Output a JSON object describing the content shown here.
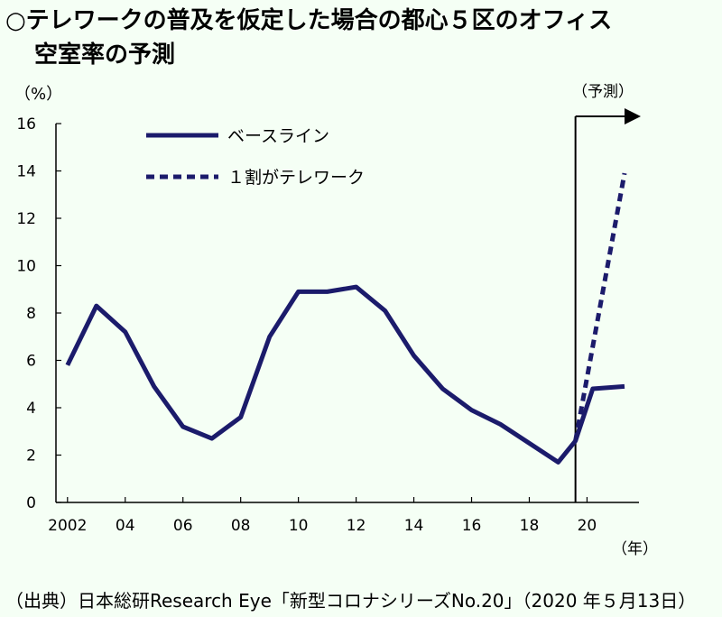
{
  "title": {
    "line1": "○テレワークの普及を仮定した場合の都心５区のオフィス",
    "line2": "空室率の予測"
  },
  "source": "（出典）日本総研Research Eye「新型コロナシリーズNo.20」（2020 年５月13日）",
  "chart_data": {
    "type": "line",
    "ylabel": "（%）",
    "xlabel": "（年）",
    "forecast_label": "（予測）",
    "ylim": [
      0,
      16
    ],
    "yticks": [
      "0",
      "2",
      "4",
      "6",
      "8",
      "10",
      "12",
      "14",
      "16"
    ],
    "xlim": [
      2001.6,
      2021.8
    ],
    "xticks": [
      {
        "x": 2002,
        "label": "2002"
      },
      {
        "x": 2004,
        "label": "04"
      },
      {
        "x": 2006,
        "label": "06"
      },
      {
        "x": 2008,
        "label": "08"
      },
      {
        "x": 2010,
        "label": "10"
      },
      {
        "x": 2012,
        "label": "12"
      },
      {
        "x": 2014,
        "label": "14"
      },
      {
        "x": 2016,
        "label": "16"
      },
      {
        "x": 2018,
        "label": "18"
      },
      {
        "x": 2020,
        "label": "20"
      }
    ],
    "forecast_start": 2019.6,
    "grid": false,
    "legend_position": "top-left",
    "colors": {
      "line": "#1b1b6b"
    },
    "series": [
      {
        "name": "ベースライン",
        "style": "solid",
        "x": [
          2002,
          2003,
          2004,
          2005,
          2006,
          2007,
          2008,
          2009,
          2010,
          2011,
          2012,
          2013,
          2014,
          2015,
          2016,
          2017,
          2018,
          2019,
          2019.6,
          2020.2,
          2021.3
        ],
        "y": [
          5.8,
          8.3,
          7.2,
          4.9,
          3.2,
          2.7,
          3.6,
          7.0,
          8.9,
          8.9,
          9.1,
          8.1,
          6.2,
          4.8,
          3.9,
          3.3,
          2.5,
          1.7,
          2.6,
          4.8,
          4.9
        ]
      },
      {
        "name": "１割がテレワーク",
        "style": "dashed",
        "x": [
          2019.6,
          2021.3
        ],
        "y": [
          2.6,
          13.9
        ]
      }
    ]
  }
}
